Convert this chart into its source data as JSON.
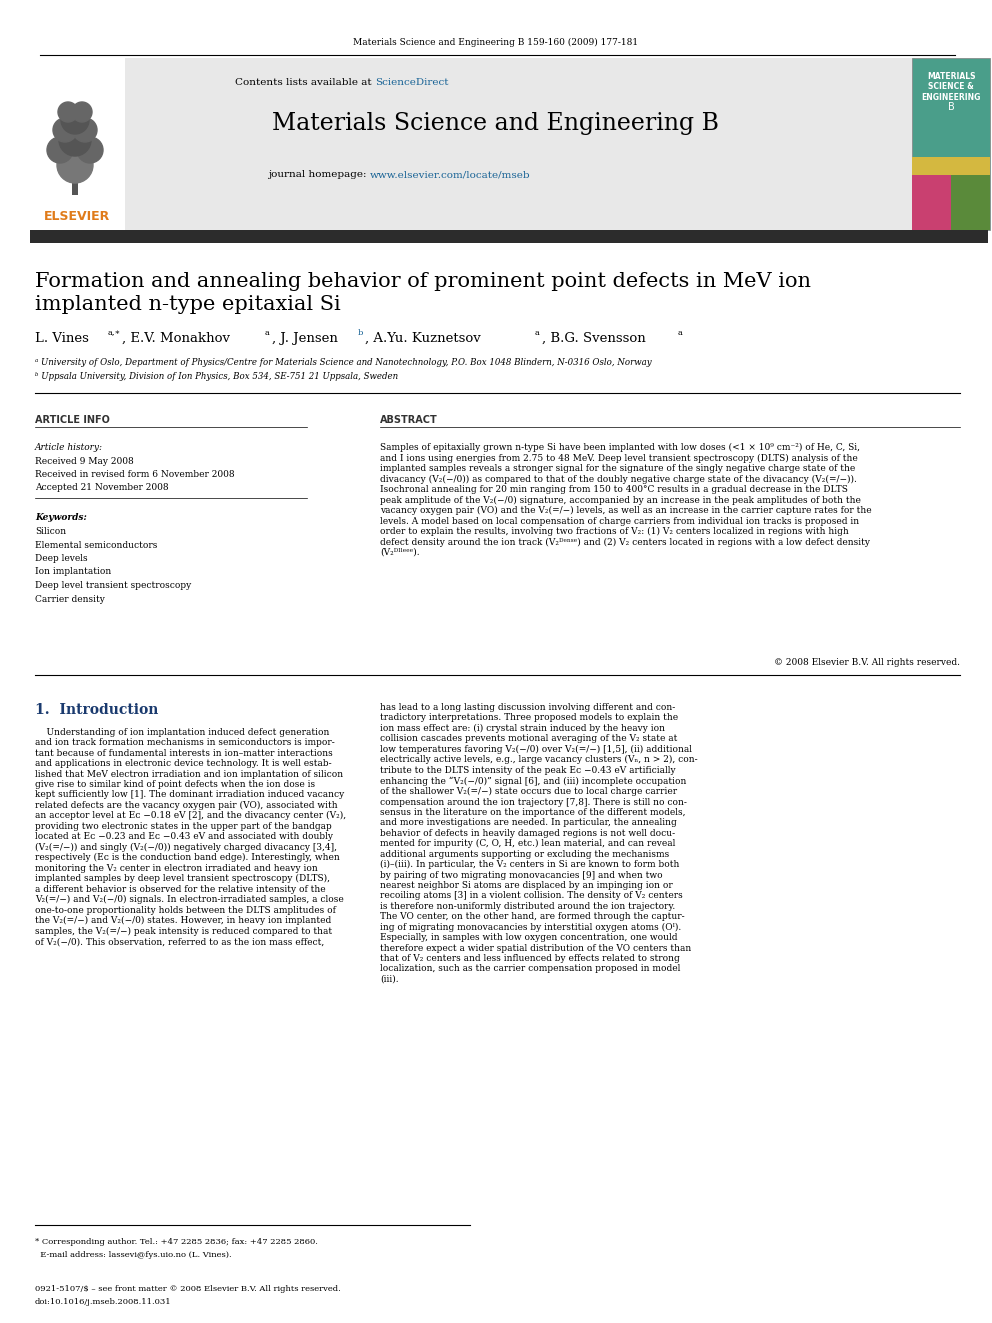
{
  "journal_ref": "Materials Science and Engineering B 159-160 (2009) 177-181",
  "journal_name": "Materials Science and Engineering B",
  "sciencedirect_color": "#1a6496",
  "url_color": "#1a6496",
  "title_line1": "Formation and annealing behavior of prominent point defects in MeV ion",
  "title_line2": "implanted n-type epitaxial Si",
  "affil_a": "ᵃ University of Oslo, Department of Physics/Centre for Materials Science and Nanotechnology, P.O. Box 1048 Blindern, N-0316 Oslo, Norway",
  "affil_b": "ᵇ Uppsala University, Division of Ion Physics, Box 534, SE-751 21 Uppsala, Sweden",
  "article_info_header": "ARTICLE INFO",
  "article_history_label": "Article history:",
  "received": "Received 9 May 2008",
  "received_revised": "Received in revised form 6 November 2008",
  "accepted": "Accepted 21 November 2008",
  "keywords_header": "Keywords:",
  "keywords": [
    "Silicon",
    "Elemental semiconductors",
    "Deep levels",
    "Ion implantation",
    "Deep level transient spectroscopy",
    "Carrier density"
  ],
  "abstract_header": "ABSTRACT",
  "section1_header": "1.  Introduction",
  "footnote1": "* Corresponding author. Tel.: +47 2285 2836; fax: +47 2285 2860.",
  "footnote2": "  E-mail address: lassevi@fys.uio.no (L. Vines).",
  "copyright_footer1": "0921-5107/$ – see front matter © 2008 Elsevier B.V. All rights reserved.",
  "copyright_footer2": "doi:10.1016/j.mseb.2008.11.031",
  "background_color": "#ffffff",
  "header_bg_color": "#e8e8e8",
  "dark_bar_color": "#2c2c2c",
  "orange_color": "#e07b1a",
  "blue_link_color": "#1a6496",
  "section_header_color": "#1a3a6e",
  "cover_teal": "#4a9e8a",
  "cover_pink": "#c94070",
  "cover_green": "#5a8a3a",
  "cover_yellow": "#d4b840"
}
